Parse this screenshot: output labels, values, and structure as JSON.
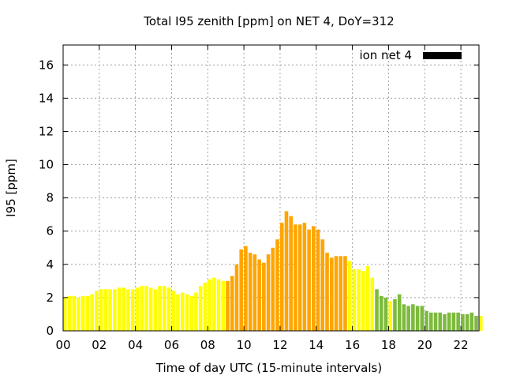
{
  "chart_data": {
    "type": "bar",
    "title": "Total I95 zenith [ppm] on NET 4, DoY=312",
    "xlabel": "Time of day UTC (15-minute intervals)",
    "ylabel": "I95 [ppm]",
    "xlim": [
      0,
      23
    ],
    "ylim": [
      0,
      17.2
    ],
    "x_ticks": [
      "00",
      "02",
      "04",
      "06",
      "08",
      "10",
      "12",
      "14",
      "16",
      "18",
      "20",
      "22"
    ],
    "x_tick_values": [
      0,
      2,
      4,
      6,
      8,
      10,
      12,
      14,
      16,
      18,
      20,
      22
    ],
    "y_ticks": [
      "0",
      "2",
      "4",
      "6",
      "8",
      "10",
      "12",
      "14",
      "16"
    ],
    "y_tick_values": [
      0,
      2,
      4,
      6,
      8,
      10,
      12,
      14,
      16
    ],
    "grid": true,
    "legend": {
      "label": "ion net 4",
      "placement": "top-right",
      "color": "#000000"
    },
    "colors": {
      "low": "#ffff00",
      "moderate": "#ffa500",
      "quiet": "#7cba3c"
    },
    "color_bands": [
      {
        "from": 0,
        "to": 9.0,
        "color": "#ffff00"
      },
      {
        "from": 9.0,
        "to": 15.75,
        "color": "#ffa500"
      },
      {
        "from": 15.75,
        "to": 17.25,
        "color": "#ffff00"
      },
      {
        "from": 17.25,
        "to": 18.0,
        "color": "#7cba3c"
      },
      {
        "from": 18.0,
        "to": 18.25,
        "color": "#ffff00"
      },
      {
        "from": 18.25,
        "to": 23.0,
        "color": "#7cba3c"
      }
    ],
    "interval_hours": 0.25,
    "start_hour": 0,
    "values": [
      2.0,
      2.1,
      2.1,
      2.0,
      2.1,
      2.1,
      2.2,
      2.4,
      2.5,
      2.5,
      2.5,
      2.5,
      2.6,
      2.6,
      2.5,
      2.5,
      2.6,
      2.7,
      2.7,
      2.6,
      2.5,
      2.7,
      2.7,
      2.6,
      2.4,
      2.2,
      2.3,
      2.2,
      2.1,
      2.3,
      2.7,
      2.9,
      3.1,
      3.2,
      3.1,
      3.0,
      3.0,
      3.3,
      4.0,
      4.9,
      5.1,
      4.7,
      4.6,
      4.3,
      4.1,
      4.6,
      5.0,
      5.5,
      6.5,
      7.2,
      6.9,
      6.4,
      6.4,
      6.5,
      6.1,
      6.3,
      6.1,
      5.5,
      4.7,
      4.4,
      4.5,
      4.5,
      4.5,
      4.2,
      3.7,
      3.7,
      3.6,
      3.9,
      3.2,
      2.5,
      2.1,
      2.0,
      1.8,
      1.9,
      2.2,
      1.6,
      1.5,
      1.6,
      1.5,
      1.5,
      1.2,
      1.1,
      1.1,
      1.1,
      1.0,
      1.1,
      1.1,
      1.1,
      1.0,
      1.0,
      1.1,
      0.9,
      0.9
    ]
  }
}
